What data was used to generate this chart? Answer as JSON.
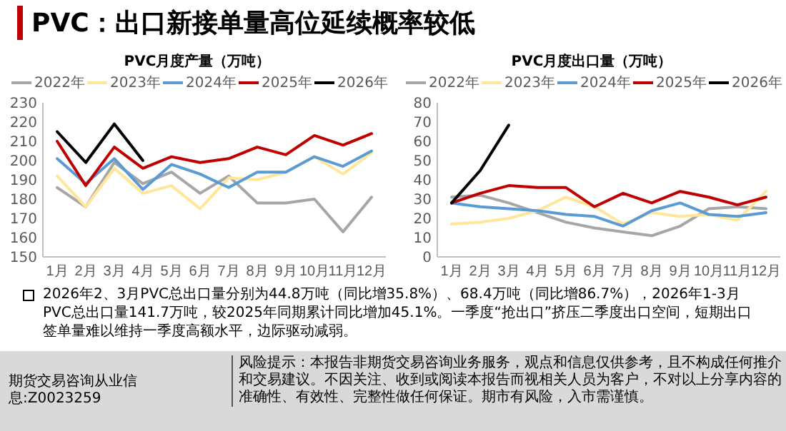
{
  "chart_data": [
    {
      "type": "other",
      "title": "PVC：出口新接单量高位延续概率较低",
      "annotations": [
        "2026年2、3月PVC总出口量分别为44.8万吨（同比增35.8%）、68.4万吨（同比增86.7%），2026年1-3月PVC总出口量141.7万吨，较2025年同期累计同比增加45.1%。一季度“抢出口”挤压二季度出口空间，短期出口签单量难以维持一季度高额水平，边际驱动减弱。",
        "期货交易咨询从业信息:Z0023259",
        "风险提示：本报告非期货交易咨询业务服务，观点和信息仅供参考，且不构成任何推介和交易建议。不因关注、收到或阅读本报告而视相关人员为客户，不对以上分享内容的准确性、有效性、完整性做任何保证。期市有风险，入市需谨慎。"
      ]
    },
    {
      "type": "line",
      "title": "PVC月度产量（万吨）",
      "categories": [
        "1月",
        "2月",
        "3月",
        "4月",
        "5月",
        "6月",
        "7月",
        "8月",
        "9月",
        "10月",
        "11月",
        "12月"
      ],
      "ylim": [
        150,
        230
      ],
      "yticks": [
        150,
        160,
        170,
        180,
        190,
        200,
        210,
        220,
        230
      ],
      "legend": "top",
      "grid": false,
      "series": [
        {
          "name": "2022年",
          "color": "#a6a6a6",
          "values": [
            186,
            176,
            199,
            188,
            194,
            183,
            192,
            178,
            178,
            180,
            163,
            181
          ]
        },
        {
          "name": "2023年",
          "color": "#ffe699",
          "values": [
            192,
            176,
            196,
            183,
            187,
            175,
            191,
            190,
            194,
            202,
            193,
            204
          ]
        },
        {
          "name": "2024年",
          "color": "#5b9bd5",
          "values": [
            201,
            188,
            201,
            185,
            198,
            193,
            186,
            194,
            194,
            202,
            197,
            205
          ]
        },
        {
          "name": "2025年",
          "color": "#c00000",
          "values": [
            210,
            187,
            207,
            196,
            202,
            199,
            201,
            207,
            203,
            213,
            208,
            214
          ]
        },
        {
          "name": "2026年",
          "color": "#000000",
          "values": [
            215,
            199,
            219,
            200,
            null,
            null,
            null,
            null,
            null,
            null,
            null,
            null
          ]
        }
      ]
    },
    {
      "type": "line",
      "title": "PVC月度出口量（万吨）",
      "categories": [
        "1月",
        "2月",
        "3月",
        "4月",
        "5月",
        "6月",
        "7月",
        "8月",
        "9月",
        "10月",
        "11月",
        "12月"
      ],
      "ylim": [
        0,
        80
      ],
      "yticks": [
        0,
        10,
        20,
        30,
        40,
        50,
        60,
        70,
        80
      ],
      "legend": "top",
      "grid": false,
      "series": [
        {
          "name": "2022年",
          "color": "#a6a6a6",
          "values": [
            31,
            32,
            28,
            23,
            18,
            15,
            13,
            11,
            16,
            25,
            26,
            25
          ]
        },
        {
          "name": "2023年",
          "color": "#ffe699",
          "values": [
            17,
            18,
            20,
            24,
            31,
            26,
            17,
            23,
            21,
            22,
            19,
            34
          ]
        },
        {
          "name": "2024年",
          "color": "#5b9bd5",
          "values": [
            28,
            26,
            25,
            24,
            22,
            21,
            16,
            24,
            28,
            22,
            21,
            23
          ]
        },
        {
          "name": "2025年",
          "color": "#c00000",
          "values": [
            28,
            33,
            37,
            36,
            36,
            26,
            33,
            28,
            34,
            31,
            27,
            31
          ]
        },
        {
          "name": "2026年",
          "color": "#000000",
          "values": [
            28,
            44.8,
            68.4,
            null,
            null,
            null,
            null,
            null,
            null,
            null,
            null,
            null
          ]
        }
      ]
    }
  ]
}
